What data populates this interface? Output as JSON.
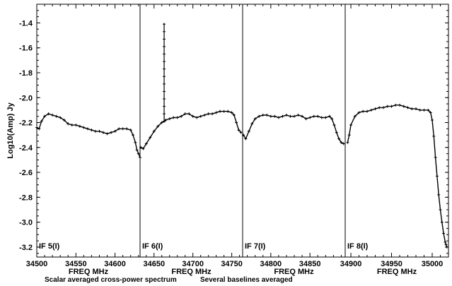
{
  "chart_data": {
    "type": "scatter",
    "ylabel": "Log10(Amp) Jy",
    "ylim": [
      -3.28,
      -1.25
    ],
    "yticks": [
      "-1.4",
      "-1.6",
      "-1.8",
      "-2.0",
      "-2.2",
      "-2.4",
      "-2.6",
      "-2.8",
      "-3.0",
      "-3.2"
    ],
    "grid": false,
    "captions": [
      "Scalar averaged cross-power spectrum",
      "Several baselines averaged"
    ],
    "panels": [
      {
        "label": "IF 5(I)",
        "xlabel": "FREQ MHz",
        "xlim": [
          34500,
          34632
        ],
        "xticks": [
          "34500",
          "34550",
          "34600"
        ],
        "x": [
          34500,
          34503,
          34506,
          34510,
          34515,
          34520,
          34525,
          34530,
          34535,
          34540,
          34545,
          34550,
          34555,
          34560,
          34565,
          34570,
          34575,
          34580,
          34585,
          34590,
          34595,
          34600,
          34605,
          34610,
          34615,
          34620,
          34623,
          34626,
          34628,
          34630,
          34632
        ],
        "y": [
          -2.24,
          -2.25,
          -2.19,
          -2.15,
          -2.13,
          -2.14,
          -2.15,
          -2.16,
          -2.18,
          -2.21,
          -2.22,
          -2.22,
          -2.23,
          -2.24,
          -2.25,
          -2.26,
          -2.27,
          -2.27,
          -2.28,
          -2.29,
          -2.28,
          -2.27,
          -2.25,
          -2.25,
          -2.25,
          -2.26,
          -2.3,
          -2.36,
          -2.42,
          -2.45,
          -2.48
        ]
      },
      {
        "label": "IF 6(I)",
        "xlabel": "FREQ MHz",
        "xlim": [
          34632,
          34764
        ],
        "xticks": [
          "34650",
          "34700",
          "34750"
        ],
        "x": [
          34633,
          34636,
          34640,
          34645,
          34650,
          34655,
          34660,
          34663,
          34665,
          34670,
          34675,
          34680,
          34685,
          34690,
          34695,
          34700,
          34705,
          34710,
          34715,
          34720,
          34725,
          34730,
          34735,
          34740,
          34745,
          34750,
          34753,
          34756,
          34759,
          34762
        ],
        "y": [
          -2.4,
          -2.41,
          -2.37,
          -2.32,
          -2.27,
          -2.23,
          -2.2,
          -2.19,
          -2.18,
          -2.17,
          -2.16,
          -2.16,
          -2.15,
          -2.13,
          -2.13,
          -2.15,
          -2.16,
          -2.15,
          -2.14,
          -2.13,
          -2.13,
          -2.12,
          -2.11,
          -2.11,
          -2.11,
          -2.12,
          -2.14,
          -2.2,
          -2.26,
          -2.28
        ]
      },
      {
        "label": "IF 7(I)",
        "xlabel": "FREQ MHz",
        "xlim": [
          34764,
          34895
        ],
        "xticks": [
          "34800",
          "34850"
        ],
        "x": [
          34765,
          34768,
          34772,
          34776,
          34780,
          34785,
          34790,
          34795,
          34800,
          34805,
          34810,
          34815,
          34820,
          34825,
          34830,
          34835,
          34840,
          34845,
          34850,
          34855,
          34860,
          34865,
          34870,
          34875,
          34878,
          34881,
          34884,
          34887,
          34890,
          34893
        ],
        "y": [
          -2.3,
          -2.33,
          -2.27,
          -2.21,
          -2.17,
          -2.15,
          -2.14,
          -2.14,
          -2.15,
          -2.15,
          -2.16,
          -2.15,
          -2.14,
          -2.15,
          -2.15,
          -2.14,
          -2.15,
          -2.17,
          -2.16,
          -2.15,
          -2.15,
          -2.16,
          -2.16,
          -2.15,
          -2.17,
          -2.22,
          -2.28,
          -2.33,
          -2.36,
          -2.37
        ]
      },
      {
        "label": "IF 8(I)",
        "xlabel": "FREQ MHz",
        "xlim": [
          34893,
          35020
        ],
        "xticks": [
          "34900",
          "34950",
          "35000"
        ],
        "x": [
          34896,
          34898,
          34900,
          34905,
          34910,
          34915,
          34920,
          34925,
          34930,
          34935,
          34940,
          34945,
          34950,
          34955,
          34960,
          34965,
          34970,
          34975,
          34980,
          34985,
          34990,
          34995,
          34998,
          35000,
          35002,
          35004,
          35006,
          35008,
          35010,
          35012,
          35014,
          35016,
          35017,
          35018
        ],
        "y": [
          -2.36,
          -2.3,
          -2.22,
          -2.15,
          -2.12,
          -2.11,
          -2.11,
          -2.1,
          -2.09,
          -2.08,
          -2.08,
          -2.07,
          -2.07,
          -2.06,
          -2.06,
          -2.07,
          -2.08,
          -2.09,
          -2.09,
          -2.1,
          -2.1,
          -2.1,
          -2.12,
          -2.18,
          -2.31,
          -2.48,
          -2.63,
          -2.78,
          -2.9,
          -3.0,
          -3.09,
          -3.16,
          -3.18,
          -3.2
        ]
      }
    ],
    "spike": {
      "panel": 1,
      "x": 34663,
      "y_top": -1.4,
      "y_base": -2.19
    }
  }
}
